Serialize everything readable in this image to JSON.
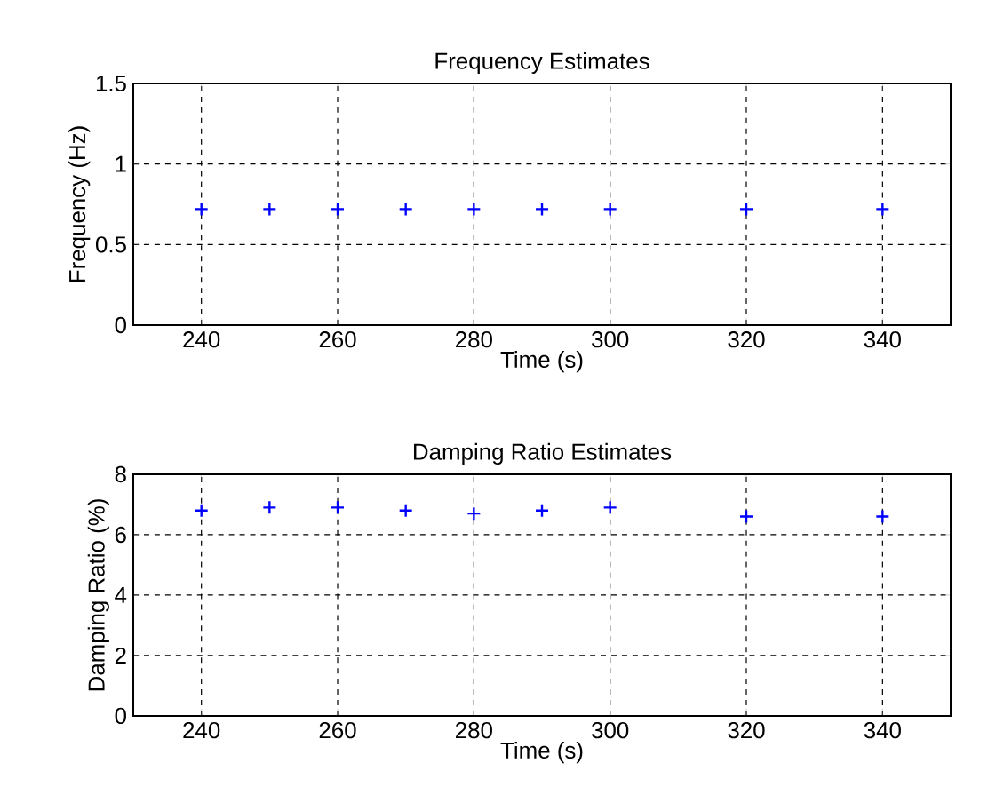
{
  "chart_data": [
    {
      "type": "scatter",
      "title": "Frequency Estimates",
      "xlabel": "Time (s)",
      "ylabel": "Frequency (Hz)",
      "x": [
        240,
        250,
        260,
        270,
        280,
        290,
        300,
        320,
        340
      ],
      "values": [
        0.72,
        0.72,
        0.72,
        0.72,
        0.72,
        0.72,
        0.72,
        0.72,
        0.72
      ],
      "color": "#0000ff",
      "marker": "cross",
      "xlim": [
        230,
        350
      ],
      "ylim": [
        0,
        1.5
      ],
      "xticks": [
        240,
        260,
        280,
        300,
        320,
        340
      ],
      "yticks": [
        0,
        0.5,
        1,
        1.5
      ],
      "grid": true
    },
    {
      "type": "scatter",
      "title": "Damping Ratio Estimates",
      "xlabel": "Time (s)",
      "ylabel": "Damping Ratio (%)",
      "x": [
        240,
        250,
        260,
        270,
        280,
        290,
        300,
        320,
        340
      ],
      "values": [
        6.8,
        6.9,
        6.9,
        6.8,
        6.7,
        6.8,
        6.9,
        6.6,
        6.6
      ],
      "color": "#0000ff",
      "marker": "cross",
      "xlim": [
        230,
        350
      ],
      "ylim": [
        0,
        8
      ],
      "xticks": [
        240,
        260,
        280,
        300,
        320,
        340
      ],
      "yticks": [
        0,
        2,
        4,
        6,
        8
      ],
      "grid": true
    }
  ]
}
